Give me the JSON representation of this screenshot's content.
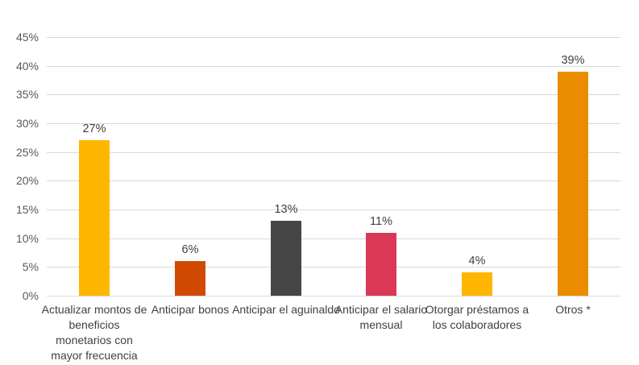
{
  "chart_data": {
    "type": "bar",
    "title": "",
    "xlabel": "",
    "ylabel": "",
    "categories": [
      "Actualizar montos de beneficios monetarios con mayor frecuencia",
      "Anticipar bonos",
      "Anticipar el aguinaldo",
      "Anticipar el salario mensual",
      "Otorgar préstamos a los colaboradores",
      "Otros *"
    ],
    "values": [
      27,
      6,
      13,
      11,
      4,
      39
    ],
    "value_labels": [
      "27%",
      "6%",
      "13%",
      "11%",
      "4%",
      "39%"
    ],
    "bar_colors": [
      "#FFB600",
      "#D04A02",
      "#464646",
      "#D93954",
      "#FFB600",
      "#EB8C00"
    ],
    "ylim": [
      0,
      45
    ],
    "ytick_step": 5,
    "ytick_labels": [
      "0%",
      "5%",
      "10%",
      "15%",
      "20%",
      "25%",
      "30%",
      "35%",
      "40%",
      "45%"
    ],
    "grid": true,
    "legend": false,
    "colors": {
      "gridline": "#d9d9d9",
      "tick_text": "#595959",
      "label_text": "#404040",
      "background": "#ffffff"
    }
  }
}
